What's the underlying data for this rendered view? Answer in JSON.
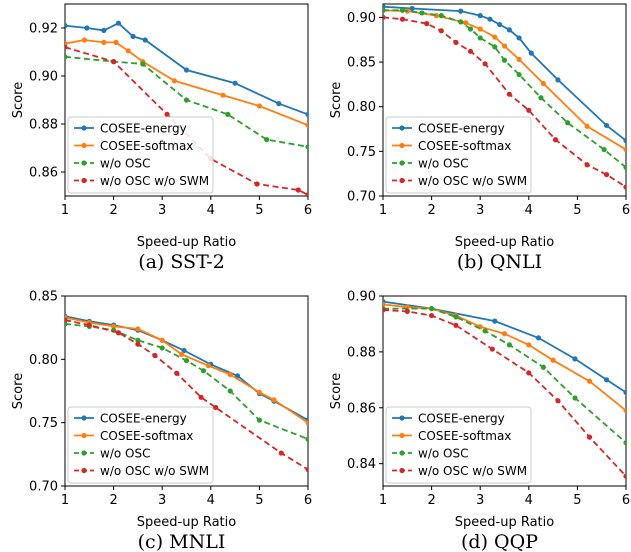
{
  "colors": {
    "COSEE-energy": "#1f77b4",
    "COSEE-softmax": "#ff7f0e",
    "w/o OSC": "#2ca02c",
    "w/o OSC w/o SWM": "#d62728"
  },
  "chart_data": [
    {
      "type": "line",
      "caption": "(a) SST-2",
      "xlabel": "Speed-up Ratio",
      "ylabel": "Score",
      "xlim": [
        1,
        6
      ],
      "ylim": [
        0.85,
        0.93
      ],
      "xticks": [
        "1",
        "2",
        "3",
        "4",
        "5",
        "6"
      ],
      "yticks": [
        {
          "v": 0.86,
          "label": "0.86"
        },
        {
          "v": 0.88,
          "label": "0.88"
        },
        {
          "v": 0.9,
          "label": "0.90"
        },
        {
          "v": 0.92,
          "label": "0.92"
        }
      ],
      "legend": "lower-left",
      "series": [
        {
          "name": "COSEE-energy",
          "style": "solid",
          "x": [
            1.0,
            1.45,
            1.8,
            2.1,
            2.4,
            2.65,
            3.5,
            4.5,
            5.4,
            6.0
          ],
          "y": [
            0.921,
            0.92,
            0.919,
            0.922,
            0.9165,
            0.915,
            0.9025,
            0.897,
            0.8885,
            0.884
          ]
        },
        {
          "name": "COSEE-softmax",
          "style": "solid",
          "x": [
            1.0,
            1.4,
            1.8,
            2.05,
            2.3,
            2.6,
            3.25,
            4.25,
            5.0,
            6.0
          ],
          "y": [
            0.9135,
            0.915,
            0.914,
            0.914,
            0.9105,
            0.906,
            0.898,
            0.892,
            0.8875,
            0.8795
          ]
        },
        {
          "name": "w/o OSC",
          "style": "dashed",
          "x": [
            1.0,
            2.0,
            2.6,
            3.5,
            4.35,
            5.15,
            6.0
          ],
          "y": [
            0.908,
            0.906,
            0.905,
            0.89,
            0.884,
            0.8735,
            0.8705
          ]
        },
        {
          "name": "w/o OSC w/o SWM",
          "style": "dashed",
          "x": [
            1.0,
            2.0,
            3.1,
            4.0,
            4.95,
            5.8,
            6.0
          ],
          "y": [
            0.912,
            0.906,
            0.884,
            0.8655,
            0.855,
            0.8525,
            0.8505
          ]
        }
      ]
    },
    {
      "type": "line",
      "caption": "(b) QNLI",
      "xlabel": "Speed-up Ratio",
      "ylabel": "Score",
      "xlim": [
        1,
        6
      ],
      "ylim": [
        0.7,
        0.915
      ],
      "xticks": [
        "1",
        "2",
        "3",
        "4",
        "5",
        "6"
      ],
      "yticks": [
        {
          "v": 0.7,
          "label": "0.70"
        },
        {
          "v": 0.75,
          "label": "0.75"
        },
        {
          "v": 0.8,
          "label": "0.80"
        },
        {
          "v": 0.85,
          "label": "0.85"
        },
        {
          "v": 0.9,
          "label": "0.90"
        }
      ],
      "legend": "lower-left",
      "series": [
        {
          "name": "COSEE-energy",
          "style": "solid",
          "x": [
            1.0,
            1.6,
            2.6,
            3.0,
            3.2,
            3.4,
            3.6,
            3.8,
            4.05,
            4.6,
            5.6,
            6.0
          ],
          "y": [
            0.912,
            0.91,
            0.907,
            0.902,
            0.898,
            0.892,
            0.886,
            0.877,
            0.86,
            0.83,
            0.779,
            0.762
          ]
        },
        {
          "name": "COSEE-softmax",
          "style": "solid",
          "x": [
            1.0,
            1.5,
            2.1,
            2.7,
            3.0,
            3.3,
            3.5,
            3.8,
            4.3,
            5.2,
            6.0
          ],
          "y": [
            0.908,
            0.907,
            0.902,
            0.894,
            0.887,
            0.878,
            0.868,
            0.853,
            0.826,
            0.778,
            0.752
          ]
        },
        {
          "name": "w/o OSC",
          "style": "dashed",
          "x": [
            1.0,
            1.4,
            1.8,
            2.2,
            2.6,
            2.8,
            3.0,
            3.3,
            3.5,
            3.8,
            4.25,
            4.8,
            5.55,
            6.0
          ],
          "y": [
            0.908,
            0.908,
            0.905,
            0.902,
            0.895,
            0.887,
            0.877,
            0.867,
            0.852,
            0.836,
            0.81,
            0.782,
            0.752,
            0.732
          ]
        },
        {
          "name": "w/o OSC w/o SWM",
          "style": "dashed",
          "x": [
            1.0,
            1.4,
            1.9,
            2.2,
            2.5,
            2.8,
            3.1,
            3.6,
            4.0,
            4.55,
            5.2,
            5.6,
            6.0
          ],
          "y": [
            0.9,
            0.898,
            0.893,
            0.885,
            0.872,
            0.862,
            0.848,
            0.814,
            0.796,
            0.763,
            0.735,
            0.724,
            0.71
          ]
        }
      ]
    },
    {
      "type": "line",
      "caption": "(c) MNLI",
      "xlabel": "Speed-up Ratio",
      "ylabel": "Score",
      "xlim": [
        1,
        6
      ],
      "ylim": [
        0.7,
        0.85
      ],
      "xticks": [
        "1",
        "2",
        "3",
        "4",
        "5",
        "6"
      ],
      "yticks": [
        {
          "v": 0.7,
          "label": "0.70"
        },
        {
          "v": 0.75,
          "label": "0.75"
        },
        {
          "v": 0.8,
          "label": "0.80"
        },
        {
          "v": 0.85,
          "label": "0.85"
        }
      ],
      "legend": "lower-left",
      "series": [
        {
          "name": "COSEE-energy",
          "style": "solid",
          "x": [
            1.0,
            1.5,
            2.0,
            2.5,
            3.0,
            3.45,
            4.0,
            4.55,
            5.0,
            5.3,
            6.0
          ],
          "y": [
            0.834,
            0.83,
            0.827,
            0.823,
            0.815,
            0.807,
            0.796,
            0.787,
            0.773,
            0.767,
            0.752
          ]
        },
        {
          "name": "COSEE-softmax",
          "style": "solid",
          "x": [
            1.0,
            1.5,
            2.0,
            2.5,
            3.0,
            3.4,
            3.95,
            4.4,
            5.0,
            5.3,
            6.0
          ],
          "y": [
            0.833,
            0.829,
            0.826,
            0.824,
            0.815,
            0.804,
            0.795,
            0.788,
            0.774,
            0.768,
            0.75
          ]
        },
        {
          "name": "w/o OSC",
          "style": "dashed",
          "x": [
            1.0,
            1.5,
            2.0,
            2.5,
            3.0,
            3.5,
            3.85,
            4.4,
            5.0,
            6.0
          ],
          "y": [
            0.828,
            0.826,
            0.823,
            0.815,
            0.809,
            0.799,
            0.791,
            0.775,
            0.752,
            0.737
          ]
        },
        {
          "name": "w/o OSC w/o SWM",
          "style": "dashed",
          "x": [
            1.0,
            1.5,
            2.1,
            2.5,
            2.85,
            3.3,
            3.8,
            4.1,
            5.45,
            6.0
          ],
          "y": [
            0.831,
            0.827,
            0.821,
            0.812,
            0.803,
            0.789,
            0.77,
            0.762,
            0.726,
            0.713
          ]
        }
      ]
    },
    {
      "type": "line",
      "caption": "(d) QQP",
      "xlabel": "Speed-up Ratio",
      "ylabel": "Score",
      "xlim": [
        1,
        6
      ],
      "ylim": [
        0.832,
        0.9
      ],
      "xticks": [
        "1",
        "2",
        "3",
        "4",
        "5",
        "6"
      ],
      "yticks": [
        {
          "v": 0.84,
          "label": "0.84"
        },
        {
          "v": 0.86,
          "label": "0.86"
        },
        {
          "v": 0.88,
          "label": "0.88"
        },
        {
          "v": 0.9,
          "label": "0.90"
        }
      ],
      "legend": "lower-left",
      "series": [
        {
          "name": "COSEE-energy",
          "style": "solid",
          "x": [
            1.0,
            2.0,
            3.3,
            4.2,
            4.95,
            5.6,
            6.0
          ],
          "y": [
            0.898,
            0.8955,
            0.891,
            0.885,
            0.8775,
            0.87,
            0.8655
          ]
        },
        {
          "name": "COSEE-softmax",
          "style": "solid",
          "x": [
            1.0,
            1.5,
            2.0,
            2.5,
            3.0,
            3.5,
            4.0,
            4.5,
            5.25,
            6.0
          ],
          "y": [
            0.897,
            0.896,
            0.8955,
            0.893,
            0.889,
            0.8865,
            0.8825,
            0.877,
            0.8695,
            0.859
          ]
        },
        {
          "name": "w/o OSC",
          "style": "dashed",
          "x": [
            1.0,
            2.0,
            2.5,
            3.1,
            3.6,
            4.3,
            4.95,
            6.0
          ],
          "y": [
            0.8955,
            0.8955,
            0.8925,
            0.8875,
            0.8825,
            0.8745,
            0.8635,
            0.8475
          ]
        },
        {
          "name": "w/o OSC w/o SWM",
          "style": "dashed",
          "x": [
            1.0,
            1.5,
            2.0,
            2.5,
            3.25,
            4.0,
            4.6,
            5.25,
            6.0
          ],
          "y": [
            0.895,
            0.8945,
            0.893,
            0.8895,
            0.881,
            0.8725,
            0.8625,
            0.8495,
            0.8355
          ]
        }
      ]
    }
  ]
}
